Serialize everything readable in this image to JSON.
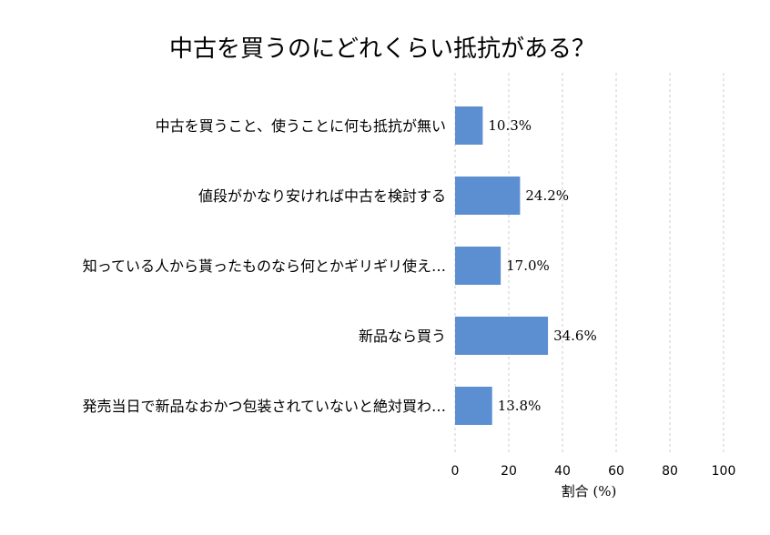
{
  "chart_data": {
    "type": "bar",
    "orientation": "horizontal",
    "title": "中古を買うのにどれくらい抵抗がある？",
    "xlabel": "割合 (%)",
    "ylabel": "",
    "xlim": [
      0,
      100
    ],
    "x_ticks": [
      "0",
      "20",
      "40",
      "60",
      "80",
      "100"
    ],
    "grid": "vertical dashed",
    "categories": [
      "中古を買うこと、使うことに何も抵抗が無い",
      "値段がかなり安ければ中古を検討する",
      "知っている人から貰ったものなら何とかギリギリ使え…",
      "新品なら買う",
      "発売当日で新品なおかつ包装されていないと絶対買わ…"
    ],
    "values": [
      10.3,
      24.2,
      17.0,
      34.6,
      13.8
    ],
    "value_labels": [
      "10.3%",
      "24.2%",
      "17.0%",
      "34.6%",
      "13.8%"
    ],
    "bar_color": "#5b8fd1"
  }
}
